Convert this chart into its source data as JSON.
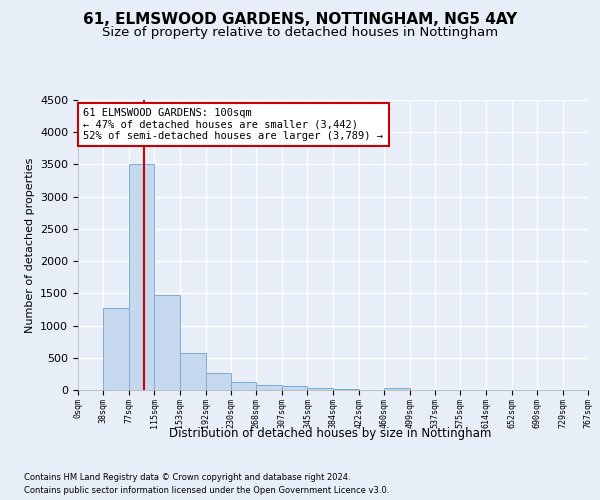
{
  "title": "61, ELMSWOOD GARDENS, NOTTINGHAM, NG5 4AY",
  "subtitle": "Size of property relative to detached houses in Nottingham",
  "xlabel": "Distribution of detached houses by size in Nottingham",
  "ylabel": "Number of detached properties",
  "footnote1": "Contains HM Land Registry data © Crown copyright and database right 2024.",
  "footnote2": "Contains public sector information licensed under the Open Government Licence v3.0.",
  "bar_edges": [
    0,
    38,
    77,
    115,
    153,
    192,
    230,
    268,
    307,
    345,
    384,
    422,
    460,
    499,
    537,
    575,
    614,
    652,
    690,
    729,
    767
  ],
  "bar_heights": [
    5,
    1280,
    3500,
    1480,
    570,
    270,
    130,
    80,
    55,
    30,
    10,
    5,
    35,
    5,
    0,
    0,
    0,
    0,
    0,
    0
  ],
  "bar_color": "#c5d8ee",
  "bar_edge_color": "#7aaed4",
  "property_line_x": 100,
  "property_line_color": "#cc0000",
  "annotation_text": "61 ELMSWOOD GARDENS: 100sqm\n← 47% of detached houses are smaller (3,442)\n52% of semi-detached houses are larger (3,789) →",
  "annotation_box_color": "#ffffff",
  "annotation_box_edge_color": "#cc0000",
  "ylim": [
    0,
    4500
  ],
  "xlim": [
    0,
    767
  ],
  "tick_labels": [
    "0sqm",
    "38sqm",
    "77sqm",
    "115sqm",
    "153sqm",
    "192sqm",
    "230sqm",
    "268sqm",
    "307sqm",
    "345sqm",
    "384sqm",
    "422sqm",
    "460sqm",
    "499sqm",
    "537sqm",
    "575sqm",
    "614sqm",
    "652sqm",
    "690sqm",
    "729sqm",
    "767sqm"
  ],
  "background_color": "#e8eef8",
  "plot_bg_color": "#e8eef8",
  "grid_color": "#ffffff",
  "title_fontsize": 11,
  "subtitle_fontsize": 9.5
}
